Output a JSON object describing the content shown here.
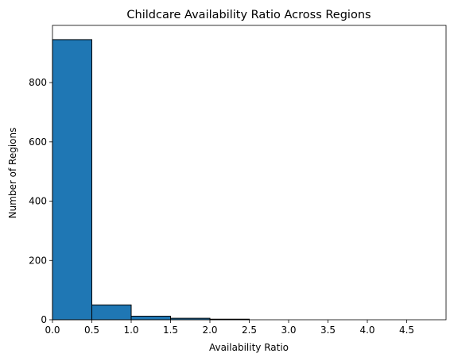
{
  "chart_data": {
    "type": "bar",
    "title": "Childcare Availability Ratio Across Regions",
    "xlabel": "Availability Ratio",
    "ylabel": "Number of Regions",
    "bins": [
      {
        "x0": 0.0,
        "x1": 0.5,
        "count": 945
      },
      {
        "x0": 0.5,
        "x1": 1.0,
        "count": 50
      },
      {
        "x0": 1.0,
        "x1": 1.5,
        "count": 12
      },
      {
        "x0": 1.5,
        "x1": 2.0,
        "count": 5
      },
      {
        "x0": 2.0,
        "x1": 2.5,
        "count": 2
      },
      {
        "x0": 2.5,
        "x1": 3.0,
        "count": 0
      },
      {
        "x0": 3.0,
        "x1": 3.5,
        "count": 0
      },
      {
        "x0": 3.5,
        "x1": 4.0,
        "count": 0
      },
      {
        "x0": 4.0,
        "x1": 4.5,
        "count": 0
      },
      {
        "x0": 4.5,
        "x1": 5.0,
        "count": 0
      }
    ],
    "xlim": [
      0,
      5.0
    ],
    "ylim": [
      0,
      993
    ],
    "xticks": [
      "0.0",
      "0.5",
      "1.0",
      "1.5",
      "2.0",
      "2.5",
      "3.0",
      "3.5",
      "4.0",
      "4.5"
    ],
    "yticks": [
      "0",
      "200",
      "400",
      "600",
      "800"
    ],
    "grid": false,
    "bar_color": "#1f77b4",
    "edge_color": "#000000"
  }
}
